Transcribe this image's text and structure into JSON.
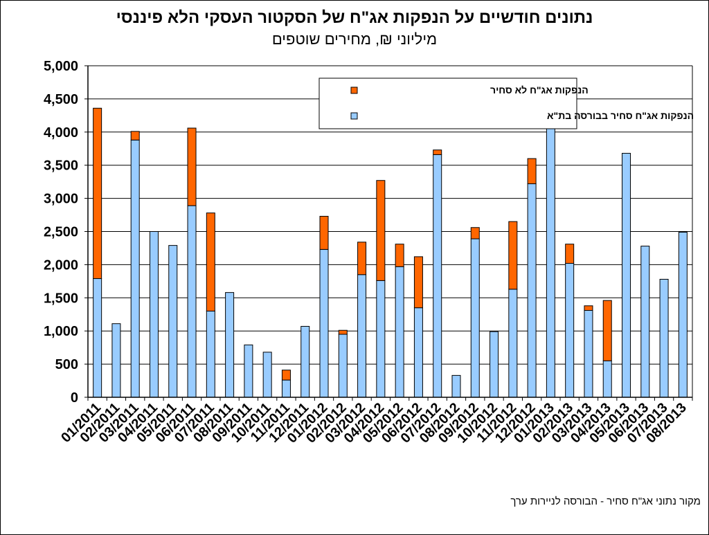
{
  "title": "נתונים חודשיים על הנפקות אג\"ח של הסקטור העסקי הלא פיננסי",
  "subtitle": "מיליוני ₪, מחירים שוטפים",
  "source": "מקור נתוני אג\"ח סחיר - הבורסה לניירות ערך",
  "colors": {
    "listed": "#99CCFF",
    "unlisted": "#FF6600",
    "outline": "#000000"
  },
  "chart_data": {
    "type": "bar",
    "stacked": true,
    "title": "נתונים חודשיים על הנפקות אג\"ח של הסקטור העסקי הלא פיננסי",
    "subtitle": "מיליוני ₪, מחירים שוטפים",
    "xlabel": "",
    "ylabel": "",
    "ylim": [
      0,
      5000
    ],
    "yticks": [
      0,
      500,
      1000,
      1500,
      2000,
      2500,
      3000,
      3500,
      4000,
      4500,
      5000
    ],
    "ytick_labels": [
      "0",
      "500",
      "1,000",
      "1,500",
      "2,000",
      "2,500",
      "3,000",
      "3,500",
      "4,000",
      "4,500",
      "5,000"
    ],
    "grid": true,
    "legend_position": "top-right",
    "categories": [
      "01/2011",
      "02/2011",
      "03/2011",
      "04/2011",
      "05/2011",
      "06/2011",
      "07/2011",
      "08/2011",
      "09/2011",
      "10/2011",
      "11/2011",
      "12/2011",
      "01/2012",
      "02/2012",
      "03/2012",
      "04/2012",
      "05/2012",
      "06/2012",
      "07/2012",
      "08/2012",
      "09/2012",
      "10/2012",
      "11/2012",
      "12/2012",
      "01/2013",
      "02/2013",
      "03/2013",
      "04/2013",
      "05/2013",
      "06/2013",
      "07/2013",
      "08/2013"
    ],
    "series": [
      {
        "name": "הנפקות אג\"ח סחיר בבורסה בת\"א",
        "color": "#99CCFF",
        "values": [
          1790,
          1110,
          3880,
          2500,
          2290,
          2890,
          1300,
          1580,
          790,
          680,
          260,
          1070,
          2230,
          950,
          1850,
          1760,
          1970,
          1350,
          3660,
          330,
          2390,
          990,
          1630,
          3220,
          4390,
          2020,
          1310,
          550,
          3680,
          2280,
          1780,
          2490
        ]
      },
      {
        "name": "הנפקות אג\"ח לא סחיר",
        "color": "#FF6600",
        "values": [
          2570,
          0,
          130,
          0,
          0,
          1170,
          1480,
          0,
          0,
          0,
          150,
          0,
          500,
          60,
          490,
          1510,
          340,
          770,
          70,
          0,
          170,
          0,
          1020,
          380,
          0,
          290,
          70,
          910,
          0,
          0,
          0,
          0
        ]
      }
    ]
  }
}
